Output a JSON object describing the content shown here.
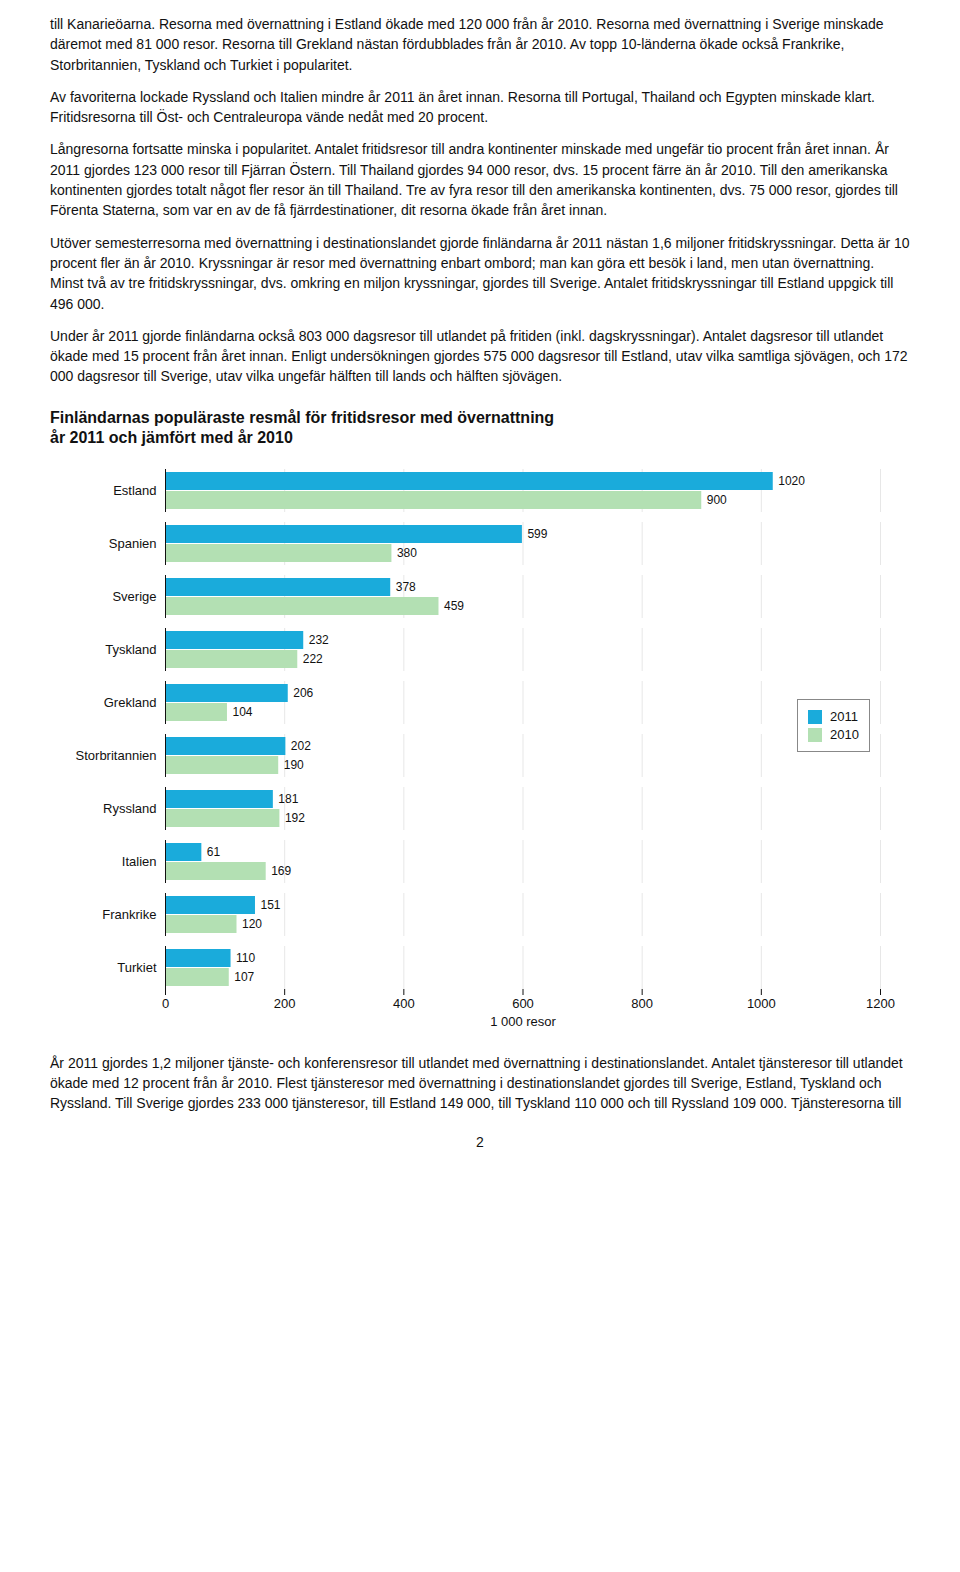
{
  "chart_data": {
    "type": "bar",
    "orientation": "horizontal",
    "title": "Finländarnas populäraste resmål för fritidsresor med övernattning",
    "subtitle": "år 2011 och jämfört med år 2010",
    "categories": [
      "Estland",
      "Spanien",
      "Sverige",
      "Tyskland",
      "Grekland",
      "Storbritannien",
      "Ryssland",
      "Italien",
      "Frankrike",
      "Turkiet"
    ],
    "series": [
      {
        "name": "2011",
        "color": "#1aabdb",
        "values": [
          1020,
          599,
          378,
          232,
          206,
          202,
          181,
          61,
          151,
          110
        ]
      },
      {
        "name": "2010",
        "color": "#b3e0b3",
        "values": [
          900,
          380,
          459,
          222,
          104,
          190,
          192,
          169,
          120,
          107
        ]
      }
    ],
    "xlabel": "1 000 resor",
    "xlim": [
      0,
      1200
    ],
    "xticks": [
      0,
      200,
      400,
      600,
      800,
      1000,
      1200
    ],
    "grid": true,
    "data_labels": true,
    "legend": "right",
    "annotations": [
      "till Kanarieöarna. Resorna med övernattning i Estland ökade med 120 000 från år 2010. Resorna med övernattning i Sverige minskade däremot med 81 000 resor. Resorna till Grekland nästan fördubblades från år 2010. Av topp 10-länderna ökade också Frankrike, Storbritannien, Tyskland och Turkiet i popularitet.",
      "Av favoriterna lockade Ryssland och Italien mindre år 2011 än året innan. Resorna till Portugal, Thailand och Egypten minskade klart. Fritidsresorna till Öst- och Centraleuropa vände nedåt med 20 procent.",
      "Långresorna fortsatte minska i popularitet. Antalet fritidsresor till andra kontinenter minskade med ungefär tio procent från året innan. År 2011 gjordes 123 000 resor till Fjärran Östern. Till Thailand gjordes 94 000 resor, dvs. 15 procent färre än år 2010. Till den amerikanska kontinenten gjordes totalt något fler resor än till Thailand. Tre av fyra resor till den amerikanska kontinenten, dvs. 75 000 resor, gjordes till Förenta Staterna, som var en av de få fjärrdestinationer, dit resorna ökade från året innan.",
      "Utöver semesterresorna med övernattning i destinationslandet gjorde finländarna år 2011 nästan 1,6 miljoner fritidskryssningar. Detta är 10 procent fler än år 2010. Kryssningar är resor med övernattning enbart ombord; man kan göra ett besök i land, men utan övernattning. Minst två av tre fritidskryssningar, dvs. omkring en miljon kryssningar, gjordes till Sverige. Antalet fritidskryssningar till Estland uppgick till 496 000.",
      "Under år 2011 gjorde finländarna också 803 000 dagsresor till utlandet på fritiden (inkl. dagskryssningar). Antalet dagsresor till utlandet ökade med 15 procent från året innan. Enligt undersökningen gjordes 575 000 dagsresor till Estland, utav vilka samtliga sjövägen, och 172 000 dagsresor till Sverige, utav vilka ungefär hälften till lands och hälften sjövägen."
    ],
    "caption": "År 2011 gjordes 1,2 miljoner tjänste- och konferensresor till utlandet med övernattning i destinationslandet. Antalet tjänsteresor till utlandet ökade med 12 procent från år 2010. Flest tjänsteresor med övernattning i destinationslandet gjordes till Sverige, Estland, Tyskland och Ryssland. Till Sverige gjordes 233 000 tjänsteresor, till Estland 149 000, till Tyskland 110 000 och till Ryssland 109 000. Tjänsteresorna till",
    "page_number": "2"
  }
}
